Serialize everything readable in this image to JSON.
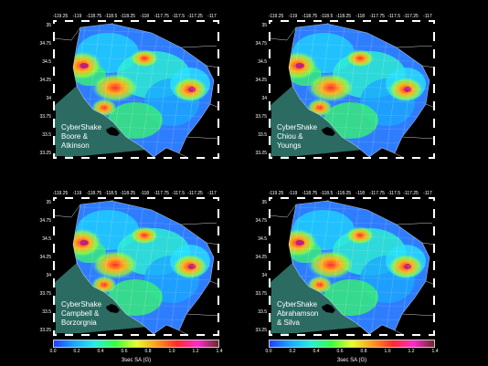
{
  "lon_labels_top": [
    "-119.25",
    "-119",
    "-118.75",
    "-118.5",
    "-118.25",
    "-118",
    "-117.75",
    "-117.5",
    "-117.25",
    "-117"
  ],
  "lat_labels_left": [
    "35",
    "34.75",
    "34.5",
    "34.25",
    "34",
    "33.75",
    "33.5",
    "33.25"
  ],
  "panels": [
    {
      "caption": [
        "CyberShake",
        "Boore &",
        "Atkinson"
      ]
    },
    {
      "caption": [
        "CyberShake",
        "Chiou &",
        "Youngs"
      ]
    },
    {
      "caption": [
        "CyberShake",
        "Campbell &",
        "Borzorgnia"
      ]
    },
    {
      "caption": [
        "CyberShake",
        "Abrahamson",
        "& Silva"
      ]
    }
  ],
  "colorbar": {
    "ticks": [
      "0.0",
      "0.2",
      "0.4",
      "0.6",
      "0.8",
      "1.0",
      "1.2",
      "1.4"
    ],
    "title": "3sec SA (G)",
    "colors": [
      "#1e40ff",
      "#1aa8ff",
      "#23f0e0",
      "#36ff3a",
      "#e8ff26",
      "#ff9a1a",
      "#ff2a2a",
      "#ff2ad0",
      "#6a2a2a"
    ]
  }
}
